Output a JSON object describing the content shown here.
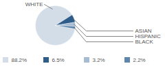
{
  "chart_data": {
    "type": "pie",
    "categories": [
      "WHITE",
      "ASIAN",
      "HISPANIC",
      "BLACK"
    ],
    "values": [
      88.2,
      6.5,
      3.2,
      2.2
    ],
    "value_labels": [
      "88.2%",
      "6.5%",
      "3.2%",
      "2.2%"
    ],
    "colors": [
      "#d3dde8",
      "#2f5d8a",
      "#a7bcd2",
      "#5f86ad"
    ],
    "legend": "bottom"
  }
}
